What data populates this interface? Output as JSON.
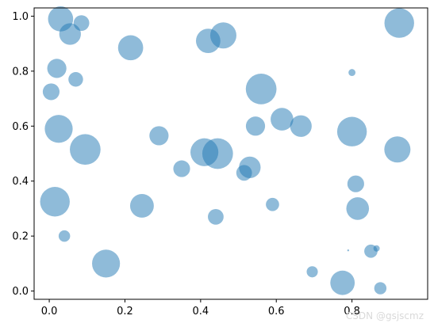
{
  "chart_data": {
    "type": "scatter",
    "title": "",
    "xlabel": "",
    "ylabel": "",
    "xlim": [
      -0.04,
      1.0
    ],
    "ylim": [
      -0.03,
      1.03
    ],
    "xticks": [
      0.0,
      0.2,
      0.4,
      0.6,
      0.8
    ],
    "xtick_labels": [
      "0.0",
      "0.2",
      "0.4",
      "0.6",
      "0.8"
    ],
    "yticks": [
      0.0,
      0.2,
      0.4,
      0.6,
      0.8,
      1.0
    ],
    "ytick_labels": [
      "0.0",
      "0.2",
      "0.4",
      "0.6",
      "0.8",
      "1.0"
    ],
    "grid": false,
    "legend": false,
    "marker_color": "#1f77b4",
    "marker_alpha": 0.5,
    "series": [
      {
        "points": [
          {
            "x": 0.03,
            "y": 0.99,
            "s": 0.72
          },
          {
            "x": 0.055,
            "y": 0.935,
            "s": 0.62
          },
          {
            "x": 0.085,
            "y": 0.975,
            "s": 0.45
          },
          {
            "x": 0.02,
            "y": 0.81,
            "s": 0.55
          },
          {
            "x": 0.07,
            "y": 0.77,
            "s": 0.42
          },
          {
            "x": 0.005,
            "y": 0.725,
            "s": 0.48
          },
          {
            "x": 0.025,
            "y": 0.59,
            "s": 0.8
          },
          {
            "x": 0.095,
            "y": 0.515,
            "s": 0.88
          },
          {
            "x": 0.015,
            "y": 0.325,
            "s": 0.85
          },
          {
            "x": 0.04,
            "y": 0.2,
            "s": 0.33
          },
          {
            "x": 0.15,
            "y": 0.1,
            "s": 0.8
          },
          {
            "x": 0.215,
            "y": 0.885,
            "s": 0.72
          },
          {
            "x": 0.29,
            "y": 0.565,
            "s": 0.55
          },
          {
            "x": 0.245,
            "y": 0.31,
            "s": 0.68
          },
          {
            "x": 0.35,
            "y": 0.445,
            "s": 0.48
          },
          {
            "x": 0.41,
            "y": 0.505,
            "s": 0.8
          },
          {
            "x": 0.445,
            "y": 0.5,
            "s": 0.88
          },
          {
            "x": 0.44,
            "y": 0.27,
            "s": 0.45
          },
          {
            "x": 0.42,
            "y": 0.91,
            "s": 0.7
          },
          {
            "x": 0.46,
            "y": 0.93,
            "s": 0.75
          },
          {
            "x": 0.53,
            "y": 0.45,
            "s": 0.62
          },
          {
            "x": 0.515,
            "y": 0.43,
            "s": 0.45
          },
          {
            "x": 0.545,
            "y": 0.6,
            "s": 0.55
          },
          {
            "x": 0.56,
            "y": 0.735,
            "s": 0.88
          },
          {
            "x": 0.59,
            "y": 0.315,
            "s": 0.38
          },
          {
            "x": 0.615,
            "y": 0.625,
            "s": 0.65
          },
          {
            "x": 0.665,
            "y": 0.6,
            "s": 0.62
          },
          {
            "x": 0.695,
            "y": 0.07,
            "s": 0.32
          },
          {
            "x": 0.775,
            "y": 0.03,
            "s": 0.7
          },
          {
            "x": 0.79,
            "y": 0.148,
            "s": 0.04
          },
          {
            "x": 0.8,
            "y": 0.58,
            "s": 0.85
          },
          {
            "x": 0.8,
            "y": 0.795,
            "s": 0.2
          },
          {
            "x": 0.81,
            "y": 0.39,
            "s": 0.48
          },
          {
            "x": 0.815,
            "y": 0.3,
            "s": 0.65
          },
          {
            "x": 0.85,
            "y": 0.145,
            "s": 0.38
          },
          {
            "x": 0.865,
            "y": 0.155,
            "s": 0.18
          },
          {
            "x": 0.875,
            "y": 0.01,
            "s": 0.35
          },
          {
            "x": 0.92,
            "y": 0.515,
            "s": 0.75
          },
          {
            "x": 0.925,
            "y": 0.975,
            "s": 0.85
          }
        ]
      }
    ]
  },
  "watermark": {
    "text": "CSDN @gsjscmz"
  }
}
